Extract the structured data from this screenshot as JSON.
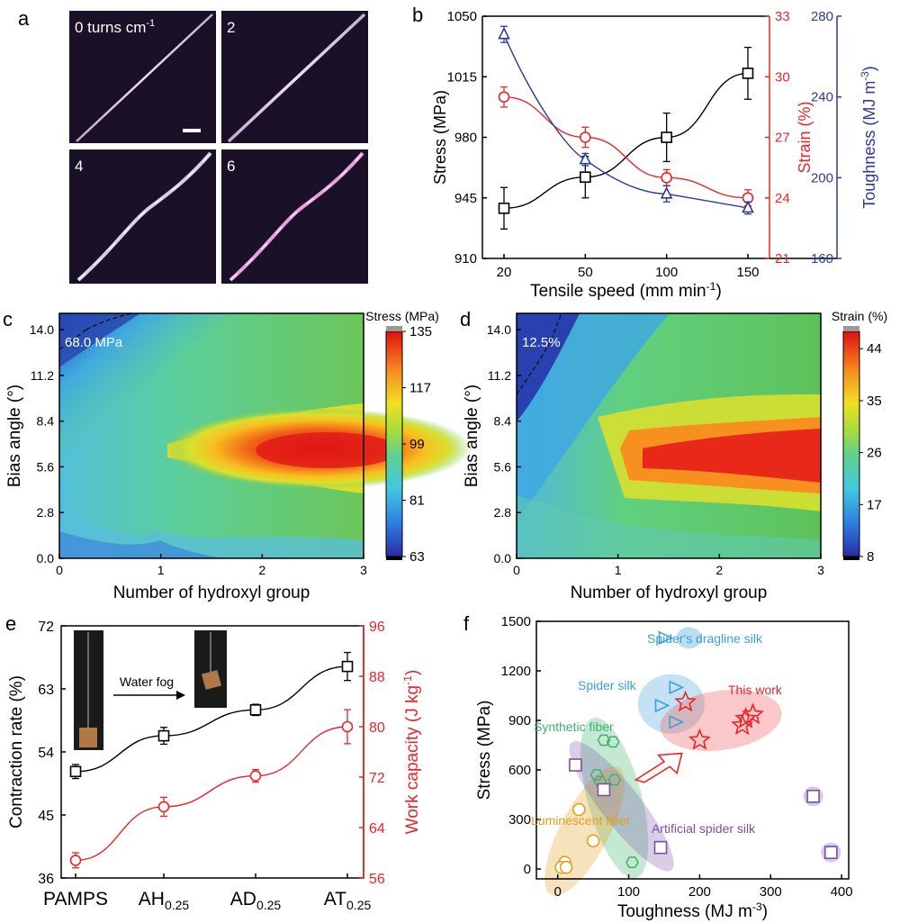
{
  "panels": {
    "a": {
      "letter": "a",
      "images": [
        {
          "label_main": "0 turns cm",
          "label_sup": "-1"
        },
        {
          "label_main": "2",
          "label_sup": ""
        },
        {
          "label_main": "4",
          "label_sup": ""
        },
        {
          "label_main": "6",
          "label_sup": ""
        }
      ]
    },
    "b": {
      "letter": "b"
    },
    "c": {
      "letter": "c"
    },
    "d": {
      "letter": "d"
    },
    "e": {
      "letter": "e"
    },
    "f": {
      "letter": "f"
    }
  },
  "colors": {
    "black": "#000000",
    "red": "#e8262a",
    "blue": "#2e3a96",
    "cyan": "#3b9fd8",
    "green": "#3bb36a",
    "purple": "#7b4fa8",
    "orange": "#e0a020",
    "pink": "#f06060"
  },
  "chart_data": [
    {
      "id": "b",
      "type": "line",
      "xlabel_main": "Tensile speed (mm min",
      "xlabel_sup": "-1",
      "xlabel_end": ")",
      "categories": [
        "20",
        "50",
        "100",
        "150"
      ],
      "axes": {
        "left": {
          "label": "Stress (MPa)",
          "ticks": [
            910,
            945,
            980,
            1015,
            1050
          ],
          "range": [
            910,
            1050
          ]
        },
        "right1": {
          "label": "Strain (%)",
          "ticks": [
            21,
            24,
            27,
            30,
            33
          ],
          "range": [
            21,
            33
          ]
        },
        "right2": {
          "label_main": "Toughness (MJ m",
          "label_sup": "-3",
          "label_end": ")",
          "ticks": [
            160,
            200,
            240,
            280
          ],
          "range": [
            160,
            280
          ]
        }
      },
      "series": [
        {
          "axis": "left",
          "marker": "square",
          "values": [
            939,
            957,
            980,
            1017
          ],
          "err": [
            12,
            12,
            14,
            15
          ]
        },
        {
          "axis": "right1",
          "marker": "circle",
          "values": [
            29.0,
            27.0,
            25.0,
            24.0
          ],
          "err": [
            0.5,
            0.5,
            0.4,
            0.4
          ]
        },
        {
          "axis": "right2",
          "marker": "triangle",
          "values": [
            271,
            209,
            192,
            185
          ],
          "err": [
            4,
            3,
            4,
            3
          ]
        }
      ]
    },
    {
      "id": "c",
      "type": "heatmap",
      "xlabel": "Number of hydroxyl group",
      "ylabel": "Bias angle (°)",
      "xticks": [
        "0",
        "1",
        "2",
        "3"
      ],
      "yticks": [
        "0.0",
        "2.8",
        "5.6",
        "8.4",
        "11.2",
        "14.0"
      ],
      "xlim": [
        0,
        3
      ],
      "ylim": [
        0,
        15
      ],
      "colorbar": {
        "title": "Stress (MPa)",
        "ticks": [
          "135",
          "117",
          "99",
          "81",
          "63"
        ],
        "range": [
          63,
          135
        ]
      },
      "annotation": "68.0 MPa"
    },
    {
      "id": "d",
      "type": "heatmap",
      "xlabel": "Number of hydroxyl group",
      "ylabel": "Bias angle (°)",
      "xticks": [
        "0",
        "1",
        "2",
        "3"
      ],
      "yticks": [
        "0.0",
        "2.8",
        "5.6",
        "8.4",
        "11.2",
        "14.0"
      ],
      "xlim": [
        0,
        3
      ],
      "ylim": [
        0,
        15
      ],
      "colorbar": {
        "title": "Strain (%)",
        "ticks": [
          "44",
          "35",
          "26",
          "17",
          "8"
        ],
        "range": [
          8,
          47
        ]
      },
      "annotation": "12.5%"
    },
    {
      "id": "e",
      "type": "line",
      "categories": [
        {
          "main": "PAMPS",
          "sub": ""
        },
        {
          "main": "AH",
          "sub": "0.25"
        },
        {
          "main": "AD",
          "sub": "0.25"
        },
        {
          "main": "AT",
          "sub": "0.25"
        }
      ],
      "axes": {
        "left": {
          "label": "Contraction rate (%)",
          "ticks": [
            36,
            45,
            54,
            63,
            72
          ],
          "range": [
            36,
            72
          ]
        },
        "right": {
          "label_main": "Work capacity (J kg",
          "label_sup": "-1",
          "label_end": ")",
          "ticks": [
            56,
            64,
            72,
            80,
            88,
            96
          ],
          "range": [
            56,
            96
          ]
        }
      },
      "series": [
        {
          "axis": "left",
          "marker": "square",
          "values": [
            51.2,
            56.3,
            60.0,
            66.2
          ],
          "err": [
            1.0,
            1.2,
            0.8,
            2.0
          ]
        },
        {
          "axis": "right",
          "marker": "circle",
          "values": [
            58.8,
            67.3,
            72.2,
            80.0
          ],
          "err": [
            1.2,
            1.5,
            1.0,
            2.7
          ]
        }
      ],
      "inset_label": "Water fog"
    },
    {
      "id": "f",
      "type": "scatter",
      "xlabel_main": "Toughness (MJ m",
      "xlabel_sup": "-3",
      "xlabel_end": ")",
      "ylabel": "Stress (MPa)",
      "xticks": [
        0,
        100,
        200,
        300,
        400
      ],
      "yticks": [
        0,
        300,
        600,
        900,
        1200,
        1500
      ],
      "xlim": [
        -30,
        410
      ],
      "ylim": [
        -60,
        1500
      ],
      "groups": [
        {
          "name": "Spider's dragline silk",
          "marker": "triangle-right",
          "points": [
            [
              150,
              1400
            ]
          ]
        },
        {
          "name": "Spider silk",
          "marker": "triangle-right",
          "points": [
            [
              165,
              1100
            ],
            [
              145,
              990
            ],
            [
              165,
              890
            ]
          ]
        },
        {
          "name": "This work",
          "marker": "star",
          "points": [
            [
              180,
              1010
            ],
            [
              200,
              780
            ],
            [
              260,
              870
            ],
            [
              265,
              910
            ],
            [
              275,
              935
            ]
          ]
        },
        {
          "name": "Synthetic fiber",
          "marker": "hexagon",
          "points": [
            [
              65,
              780
            ],
            [
              78,
              770
            ],
            [
              55,
              570
            ],
            [
              80,
              540
            ],
            [
              60,
              530
            ],
            [
              105,
              40
            ]
          ]
        },
        {
          "name": "Luminescent fiber",
          "marker": "circle",
          "points": [
            [
              30,
              360
            ],
            [
              50,
              170
            ],
            [
              10,
              40
            ],
            [
              5,
              10
            ],
            [
              12,
              10
            ]
          ]
        },
        {
          "name": "Artificial spider silk",
          "marker": "square",
          "points": [
            [
              25,
              630
            ],
            [
              65,
              480
            ],
            [
              145,
              130
            ],
            [
              360,
              440
            ],
            [
              385,
              100
            ]
          ]
        }
      ]
    }
  ]
}
